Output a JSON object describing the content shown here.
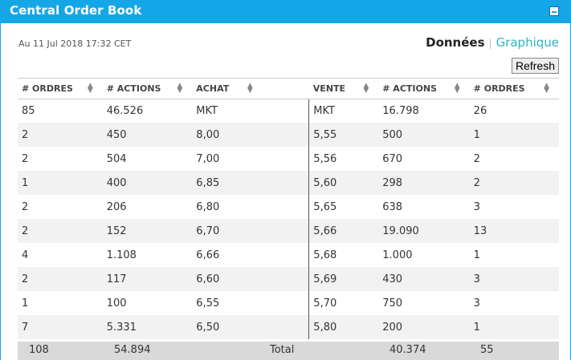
{
  "header": {
    "title": "Central Order Book"
  },
  "timestamp": "Au 11 Jul 2018 17:32 CET",
  "view_toggle": {
    "donnees": "Données",
    "separator": "|",
    "graphique": "Graphique"
  },
  "refresh_label": "Refresh",
  "columns": [
    "# ORDRES",
    "# ACTIONS",
    "ACHAT",
    "VENTE",
    "# ACTIONS",
    "# ORDRES"
  ],
  "rows": [
    [
      "85",
      "46.526",
      "MKT",
      "MKT",
      "16.798",
      "26"
    ],
    [
      "2",
      "450",
      "8,00",
      "5,55",
      "500",
      "1"
    ],
    [
      "2",
      "504",
      "7,00",
      "5,56",
      "670",
      "2"
    ],
    [
      "1",
      "400",
      "6,85",
      "5,60",
      "298",
      "2"
    ],
    [
      "2",
      "206",
      "6,80",
      "5,65",
      "638",
      "3"
    ],
    [
      "2",
      "152",
      "6,70",
      "5,66",
      "19.090",
      "13"
    ],
    [
      "4",
      "1.108",
      "6,66",
      "5,68",
      "1.000",
      "1"
    ],
    [
      "2",
      "117",
      "6,60",
      "5,69",
      "430",
      "3"
    ],
    [
      "1",
      "100",
      "6,55",
      "5,70",
      "750",
      "3"
    ],
    [
      "7",
      "5.331",
      "6,50",
      "5,80",
      "200",
      "1"
    ]
  ],
  "totals": {
    "buy_orders": "108",
    "buy_shares": "54.894",
    "label": "Total",
    "sell_shares": "40.374",
    "sell_orders": "55"
  }
}
